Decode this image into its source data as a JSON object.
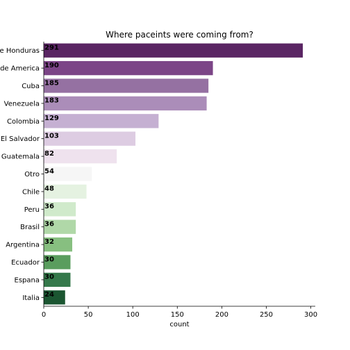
{
  "chart_data": {
    "type": "bar",
    "orientation": "horizontal",
    "title": "Where paceints were coming from?",
    "xlabel": "count",
    "ylabel": "",
    "xlim": [
      0,
      305
    ],
    "xticks": [
      "0",
      "50",
      "100",
      "150",
      "200",
      "250",
      "300"
    ],
    "xtick_values": [
      0,
      50,
      100,
      150,
      200,
      250,
      300
    ],
    "categories": [
      "de Honduras",
      "de America",
      "Cuba",
      "Venezuela",
      "Colombia",
      "El Salvador",
      "Guatemala",
      "Otro",
      "Chile",
      "Peru",
      "Brasil",
      "Argentina",
      "Ecuador",
      "Espana",
      "Italia"
    ],
    "values": [
      291,
      190,
      185,
      183,
      129,
      103,
      82,
      54,
      48,
      36,
      36,
      32,
      30,
      30,
      24
    ],
    "data_labels": [
      "291",
      "190",
      "185",
      "183",
      "129",
      "103",
      "82",
      "54",
      "48",
      "36",
      "36",
      "32",
      "30",
      "30",
      "24"
    ],
    "colors": [
      "#5a2563",
      "#7c4587",
      "#9571a2",
      "#ab8db9",
      "#c5b0d2",
      "#ddcce2",
      "#efe2ee",
      "#f6f6f6",
      "#e5f2e1",
      "#d0eacb",
      "#b0d8a8",
      "#87bf80",
      "#5a9d5e",
      "#35794b",
      "#1b5631"
    ],
    "grid": false,
    "legend": "none"
  }
}
